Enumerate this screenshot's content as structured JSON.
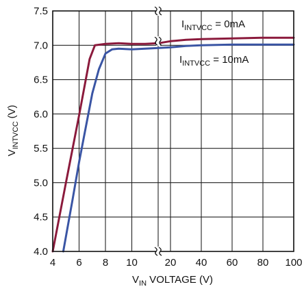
{
  "chart_data": {
    "type": "line",
    "title": "",
    "xlabel": {
      "main": "V",
      "sub": "IN",
      "rest": " VOLTAGE (V)"
    },
    "ylabel": {
      "main": "V",
      "sub": "INTVCC",
      "rest": " (V)"
    },
    "x_axis": {
      "note": "broken axis",
      "segment_linear": {
        "range": [
          4,
          12
        ],
        "ticks": [
          4,
          6,
          8,
          10
        ]
      },
      "segment_upper": {
        "range": [
          12,
          100
        ],
        "ticks": [
          20,
          40,
          60,
          80,
          100
        ]
      }
    },
    "ylim": [
      4.0,
      7.5
    ],
    "yticks": [
      "4.0",
      "4.5",
      "5.0",
      "5.5",
      "6.0",
      "6.5",
      "7.0",
      "7.5"
    ],
    "xtick_labels": [
      "4",
      "6",
      "8",
      "10",
      "20",
      "40",
      "60",
      "80",
      "100"
    ],
    "grid": true,
    "colors": {
      "series_0mA": "#8b1a3c",
      "series_10mA": "#3a55a4",
      "grid": "#222222"
    },
    "series": [
      {
        "name": "I_INTVCC = 0mA",
        "label_main": "I",
        "label_sub": "INTVCC",
        "label_rest": " = 0mA",
        "color": "#8b1a3c",
        "x": [
          4.0,
          5.0,
          6.0,
          6.8,
          7.2,
          8.0,
          9.0,
          10.0,
          11.0,
          12.0,
          20,
          30,
          40,
          60,
          80,
          100
        ],
        "y": [
          4.0,
          5.0,
          5.98,
          6.8,
          7.0,
          7.02,
          7.03,
          7.02,
          7.02,
          7.03,
          7.06,
          7.08,
          7.09,
          7.1,
          7.11,
          7.11
        ]
      },
      {
        "name": "I_INTVCC = 10mA",
        "label_main": "I",
        "label_sub": "INTVCC",
        "label_rest": " = 10mA",
        "color": "#3a55a4",
        "x": [
          4.8,
          5.5,
          6.0,
          7.0,
          7.5,
          8.0,
          8.5,
          9.0,
          10.0,
          11.0,
          12.0,
          20,
          30,
          40,
          60,
          80,
          100
        ],
        "y": [
          4.0,
          4.75,
          5.3,
          6.3,
          6.65,
          6.88,
          6.94,
          6.95,
          6.94,
          6.95,
          6.96,
          6.97,
          6.99,
          7.0,
          7.01,
          7.01,
          7.01
        ]
      }
    ]
  }
}
